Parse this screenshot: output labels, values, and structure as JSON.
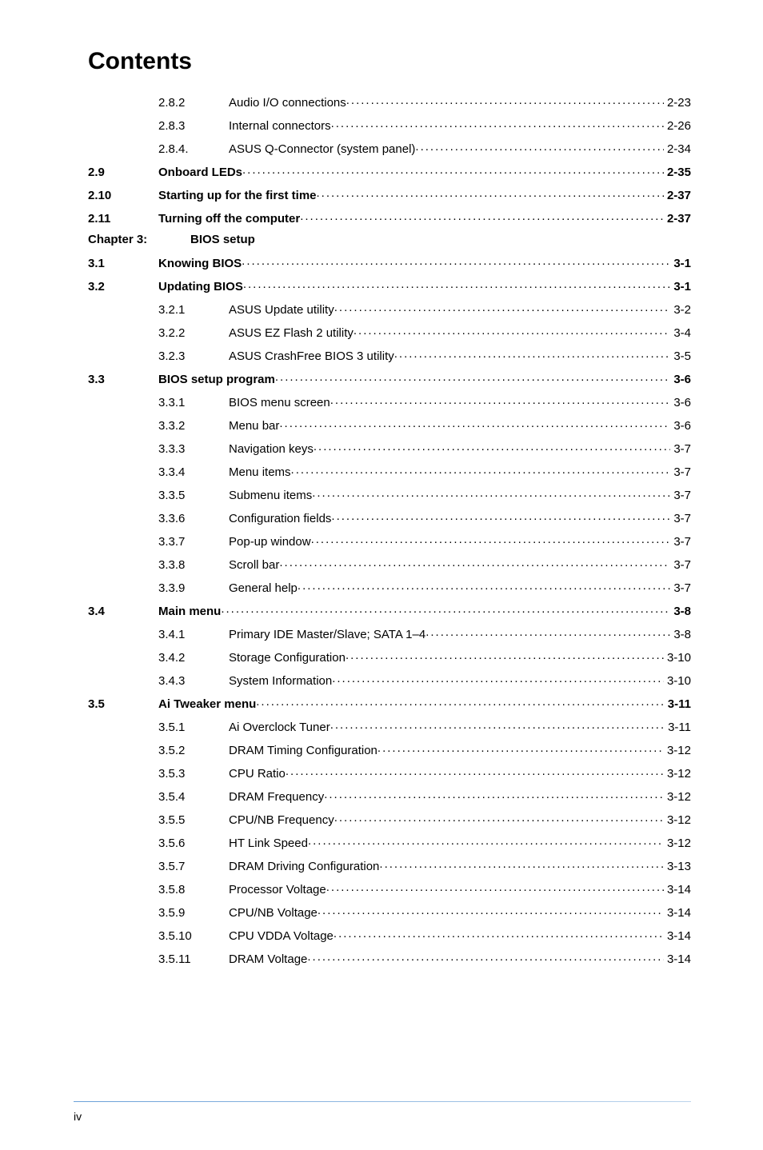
{
  "heading": "Contents",
  "footer": "iv",
  "rows": [
    {
      "type": "sub",
      "num": "2.8.2",
      "title": "Audio I/O connections",
      "page": "2-23"
    },
    {
      "type": "sub",
      "num": "2.8.3",
      "title": "Internal connectors",
      "page": "2-26"
    },
    {
      "type": "sub",
      "num": "2.8.4.",
      "title": "ASUS Q-Connector (system panel)",
      "page": "2-34"
    },
    {
      "type": "sec",
      "num": "2.9",
      "title": "Onboard LEDs",
      "page": "2-35"
    },
    {
      "type": "sec",
      "num": "2.10",
      "title": "Starting up for the first time",
      "page": "2-37"
    },
    {
      "type": "sec",
      "num": "2.11",
      "title": "Turning off the computer",
      "page": "2-37"
    },
    {
      "type": "chapter",
      "label": "Chapter 3:",
      "title": "BIOS setup"
    },
    {
      "type": "sec",
      "num": "3.1",
      "title": "Knowing BIOS",
      "page": "3-1"
    },
    {
      "type": "sec",
      "num": "3.2",
      "title": "Updating BIOS",
      "page": "3-1"
    },
    {
      "type": "sub",
      "num": "3.2.1",
      "title": "ASUS Update utility",
      "page": "3-2"
    },
    {
      "type": "sub",
      "num": "3.2.2",
      "title": "ASUS EZ Flash 2 utility",
      "page": "3-4"
    },
    {
      "type": "sub",
      "num": "3.2.3",
      "title": "ASUS CrashFree BIOS 3 utility",
      "page": "3-5"
    },
    {
      "type": "sec",
      "num": "3.3",
      "title": "BIOS setup program",
      "page": "3-6"
    },
    {
      "type": "sub",
      "num": "3.3.1",
      "title": "BIOS menu screen",
      "page": "3-6"
    },
    {
      "type": "sub",
      "num": "3.3.2",
      "title": "Menu bar",
      "page": "3-6"
    },
    {
      "type": "sub",
      "num": "3.3.3",
      "title": "Navigation keys",
      "page": "3-7"
    },
    {
      "type": "sub",
      "num": "3.3.4",
      "title": "Menu items",
      "page": "3-7"
    },
    {
      "type": "sub",
      "num": "3.3.5",
      "title": "Submenu items",
      "page": "3-7"
    },
    {
      "type": "sub",
      "num": "3.3.6",
      "title": "Configuration fields",
      "page": "3-7"
    },
    {
      "type": "sub",
      "num": "3.3.7",
      "title": "Pop-up window",
      "page": "3-7"
    },
    {
      "type": "sub",
      "num": "3.3.8",
      "title": "Scroll bar",
      "page": "3-7"
    },
    {
      "type": "sub",
      "num": "3.3.9",
      "title": "General help",
      "page": "3-7"
    },
    {
      "type": "sec",
      "num": "3.4",
      "title": "Main menu",
      "page": "3-8"
    },
    {
      "type": "sub",
      "num": "3.4.1",
      "title": "Primary IDE Master/Slave; SATA 1–4",
      "page": "3-8"
    },
    {
      "type": "sub",
      "num": "3.4.2",
      "title": "Storage Configuration",
      "page": "3-10"
    },
    {
      "type": "sub",
      "num": "3.4.3",
      "title": "System Information",
      "page": "3-10"
    },
    {
      "type": "sec",
      "num": "3.5",
      "title": "Ai Tweaker menu",
      "page": "3-11"
    },
    {
      "type": "sub",
      "num": "3.5.1",
      "title": "Ai Overclock Tuner",
      "page": "3-11"
    },
    {
      "type": "sub",
      "num": "3.5.2",
      "title": "DRAM Timing Configuration",
      "page": "3-12"
    },
    {
      "type": "sub",
      "num": "3.5.3",
      "title": "CPU Ratio",
      "page": "3-12"
    },
    {
      "type": "sub",
      "num": "3.5.4",
      "title": "DRAM Frequency",
      "page": "3-12"
    },
    {
      "type": "sub",
      "num": "3.5.5",
      "title": "CPU/NB Frequency",
      "page": "3-12"
    },
    {
      "type": "sub",
      "num": "3.5.6",
      "title": "HT Link Speed",
      "page": "3-12"
    },
    {
      "type": "sub",
      "num": "3.5.7",
      "title": "DRAM Driving Configuration",
      "page": "3-13"
    },
    {
      "type": "sub",
      "num": "3.5.8",
      "title": "Processor Voltage",
      "page": "3-14"
    },
    {
      "type": "sub",
      "num": "3.5.9",
      "title": "CPU/NB Voltage",
      "page": "3-14"
    },
    {
      "type": "sub",
      "num": "3.5.10",
      "title": "CPU VDDA Voltage",
      "page": "3-14"
    },
    {
      "type": "sub",
      "num": "3.5.11",
      "title": "DRAM Voltage",
      "page": "3-14"
    }
  ]
}
